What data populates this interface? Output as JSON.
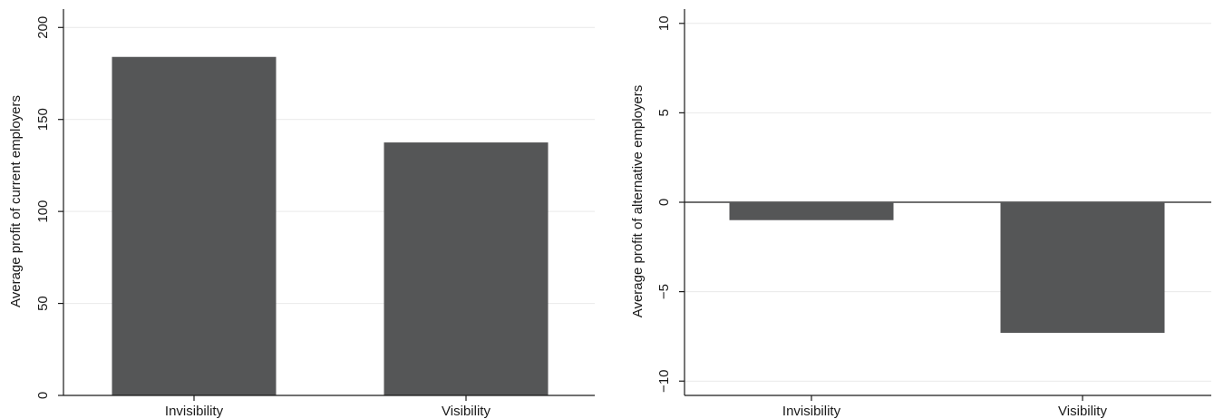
{
  "chart_data": [
    {
      "type": "bar",
      "title": "",
      "xlabel": "",
      "ylabel": "Average profit of current employers",
      "categories": [
        "Invisibility",
        "Visibility"
      ],
      "values": [
        184,
        137.5
      ],
      "ylim": [
        0,
        210
      ],
      "yticks": [
        0,
        50,
        100,
        150,
        200
      ],
      "ytick_labels": [
        "0",
        "50",
        "100",
        "150",
        "200"
      ],
      "grid": true,
      "bar_color": "#555657",
      "grid_color": "#e9e9e9"
    },
    {
      "type": "bar",
      "title": "",
      "xlabel": "",
      "ylabel": "Average profit of alternative employers",
      "categories": [
        "Invisibility",
        "Visibility"
      ],
      "values": [
        -1,
        -7.3
      ],
      "ylim": [
        -10.8,
        10.8
      ],
      "yticks": [
        -10,
        -5,
        0,
        5,
        10
      ],
      "ytick_labels": [
        "−10",
        "−5",
        "0",
        "5",
        "10"
      ],
      "grid": true,
      "bar_color": "#555657",
      "grid_color": "#e9e9e9",
      "zero_line": true
    }
  ]
}
